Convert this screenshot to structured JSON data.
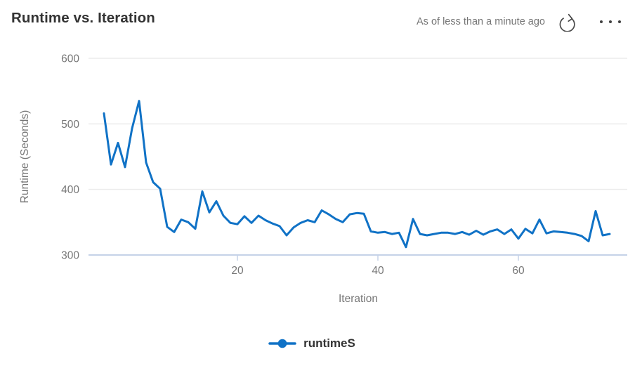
{
  "header": {
    "title": "Runtime vs. Iteration",
    "freshness": "As of less than a minute ago",
    "refresh_tooltip": "Refresh",
    "more_tooltip": "More options"
  },
  "colors": {
    "series_blue": "#1072c6",
    "title_text": "#333333",
    "muted_text": "#767676",
    "gridline": "#ebebeb",
    "axis_line": "#c5d2e8"
  },
  "legend": {
    "items": [
      {
        "label": "runtimeS",
        "marker": "line-with-circle",
        "color": "#1072c6"
      }
    ]
  },
  "chart_data": {
    "type": "line",
    "title": "Runtime vs. Iteration",
    "xlabel": "Iteration",
    "ylabel": "Runtime (Seconds)",
    "xticks": [
      20,
      40,
      60
    ],
    "yticks": [
      300,
      400,
      500,
      600
    ],
    "xlim": [
      0,
      75.5
    ],
    "ylim": [
      300,
      620
    ],
    "grid": true,
    "legend_position": "bottom",
    "series": [
      {
        "name": "runtimeS",
        "color": "#1072c6",
        "x": [
          1,
          2,
          3,
          4,
          5,
          6,
          7,
          8,
          9,
          10,
          11,
          12,
          13,
          14,
          15,
          16,
          17,
          18,
          19,
          20,
          21,
          22,
          23,
          24,
          25,
          26,
          27,
          28,
          29,
          30,
          31,
          32,
          33,
          34,
          35,
          36,
          37,
          38,
          39,
          40,
          41,
          42,
          43,
          44,
          45,
          46,
          47,
          48,
          49,
          50,
          51,
          52,
          53,
          54,
          55,
          56,
          57,
          58,
          59,
          60,
          61,
          62,
          63,
          64,
          65,
          66,
          67,
          68,
          69,
          70,
          71,
          72,
          73
        ],
        "values": [
          516,
          438,
          471,
          434,
          493,
          535,
          441,
          411,
          401,
          343,
          335,
          354,
          350,
          340,
          397,
          365,
          382,
          360,
          349,
          347,
          359,
          349,
          360,
          353,
          348,
          344,
          330,
          342,
          349,
          353,
          350,
          368,
          362,
          355,
          350,
          362,
          364,
          363,
          336,
          334,
          335,
          332,
          334,
          312,
          355,
          332,
          330,
          332,
          334,
          334,
          332,
          335,
          331,
          337,
          331,
          336,
          339,
          332,
          339,
          325,
          340,
          333,
          354,
          333,
          336,
          335,
          334,
          332,
          329,
          321,
          367,
          330,
          332
        ]
      }
    ]
  }
}
